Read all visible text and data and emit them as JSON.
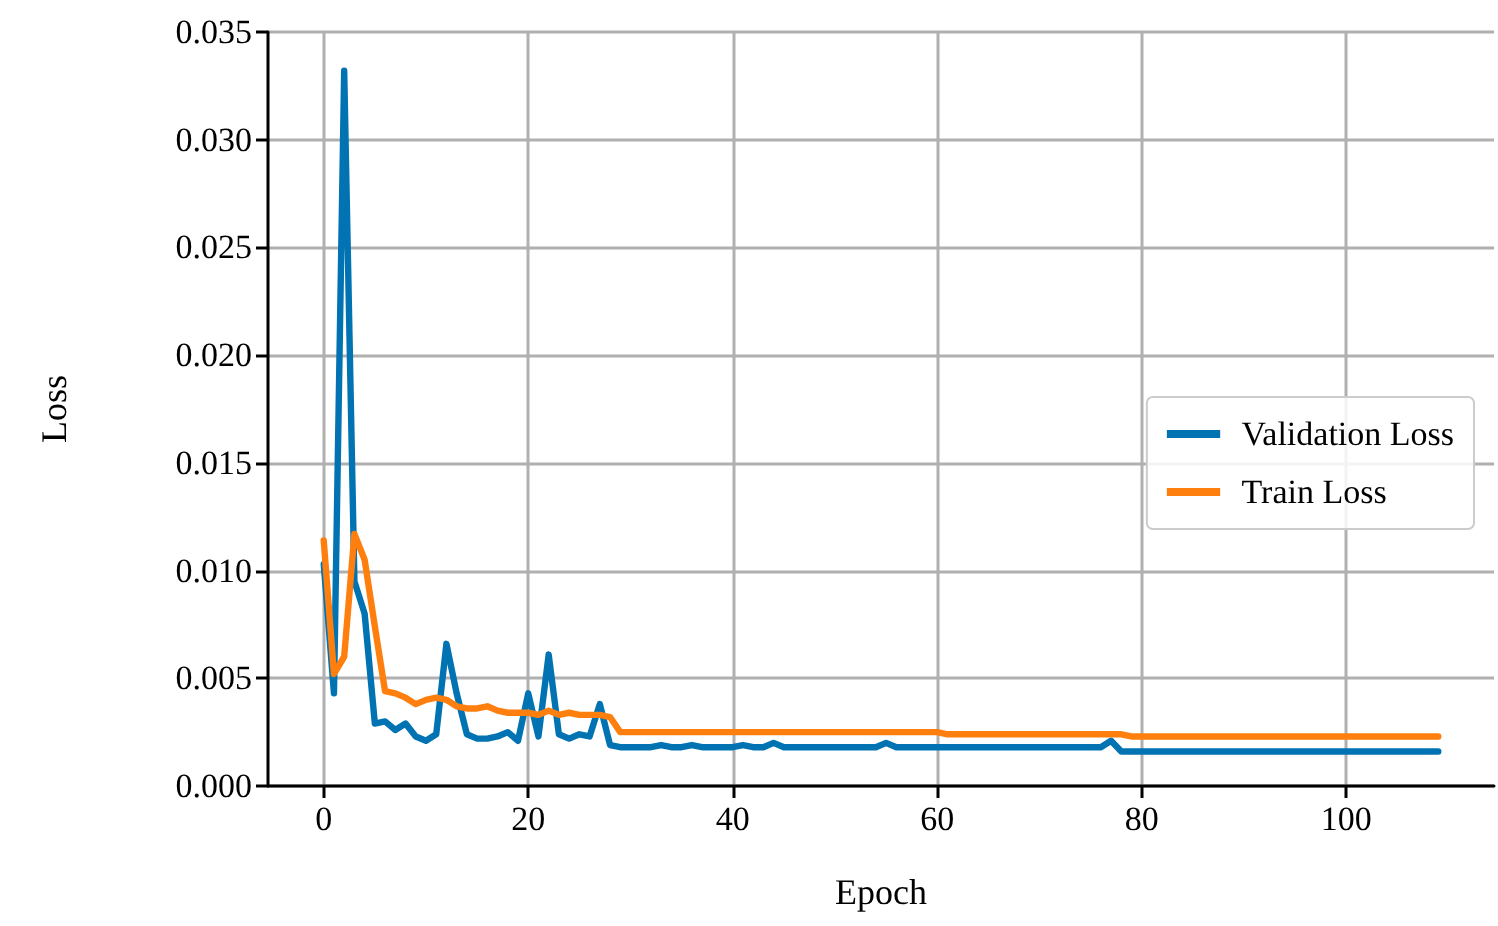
{
  "chart_data": {
    "type": "line",
    "xlabel": "Epoch",
    "ylabel": "Loss",
    "x": [
      0,
      1,
      2,
      3,
      4,
      5,
      6,
      7,
      8,
      9,
      10,
      11,
      12,
      13,
      14,
      15,
      16,
      17,
      18,
      19,
      20,
      21,
      22,
      23,
      24,
      25,
      26,
      27,
      28,
      29,
      30,
      31,
      32,
      33,
      34,
      35,
      36,
      37,
      38,
      39,
      40,
      41,
      42,
      43,
      44,
      45,
      46,
      47,
      48,
      49,
      50,
      51,
      52,
      53,
      54,
      55,
      56,
      57,
      58,
      59,
      60,
      61,
      62,
      63,
      64,
      65,
      66,
      67,
      68,
      69,
      70,
      71,
      72,
      73,
      74,
      75,
      76,
      77,
      78,
      79,
      80,
      81,
      82,
      83,
      84,
      85,
      86,
      87,
      88,
      89,
      90,
      91,
      92,
      93,
      94,
      95,
      96,
      97,
      98,
      99,
      100,
      101,
      102,
      103,
      104,
      105,
      106,
      107,
      108,
      109
    ],
    "series": [
      {
        "name": "Validation Loss",
        "color": "#0173b2",
        "values": [
          0.0103,
          0.0043,
          0.0332,
          0.0095,
          0.008,
          0.0029,
          0.003,
          0.0026,
          0.0029,
          0.0023,
          0.0021,
          0.0024,
          0.0066,
          0.0043,
          0.0024,
          0.0022,
          0.0022,
          0.0023,
          0.0025,
          0.0021,
          0.0043,
          0.0023,
          0.0061,
          0.0024,
          0.0022,
          0.0024,
          0.0023,
          0.0038,
          0.0019,
          0.0018,
          0.0018,
          0.0018,
          0.0018,
          0.0019,
          0.0018,
          0.0018,
          0.0019,
          0.0018,
          0.0018,
          0.0018,
          0.0018,
          0.0019,
          0.0018,
          0.0018,
          0.002,
          0.0018,
          0.0018,
          0.0018,
          0.0018,
          0.0018,
          0.0018,
          0.0018,
          0.0018,
          0.0018,
          0.0018,
          0.002,
          0.0018,
          0.0018,
          0.0018,
          0.0018,
          0.0018,
          0.0018,
          0.0018,
          0.0018,
          0.0018,
          0.0018,
          0.0018,
          0.0018,
          0.0018,
          0.0018,
          0.0018,
          0.0018,
          0.0018,
          0.0018,
          0.0018,
          0.0018,
          0.0018,
          0.0021,
          0.0016,
          0.0016,
          0.0016,
          0.0016,
          0.0016,
          0.0016,
          0.0016,
          0.0016,
          0.0016,
          0.0016,
          0.0016,
          0.0016,
          0.0016,
          0.0016,
          0.0016,
          0.0016,
          0.0016,
          0.0016,
          0.0016,
          0.0016,
          0.0016,
          0.0016,
          0.0016,
          0.0016,
          0.0016,
          0.0016,
          0.0016,
          0.0016,
          0.0016,
          0.0016,
          0.0016,
          0.0016
        ]
      },
      {
        "name": "Train Loss",
        "color": "#ff7f0e",
        "values": [
          0.0114,
          0.0052,
          0.006,
          0.0117,
          0.0105,
          0.0074,
          0.0044,
          0.0043,
          0.0041,
          0.0038,
          0.004,
          0.0041,
          0.004,
          0.0037,
          0.0036,
          0.0036,
          0.0037,
          0.0035,
          0.0034,
          0.0034,
          0.0034,
          0.0033,
          0.0035,
          0.0033,
          0.0034,
          0.0033,
          0.0033,
          0.0033,
          0.0032,
          0.0025,
          0.0025,
          0.0025,
          0.0025,
          0.0025,
          0.0025,
          0.0025,
          0.0025,
          0.0025,
          0.0025,
          0.0025,
          0.0025,
          0.0025,
          0.0025,
          0.0025,
          0.0025,
          0.0025,
          0.0025,
          0.0025,
          0.0025,
          0.0025,
          0.0025,
          0.0025,
          0.0025,
          0.0025,
          0.0025,
          0.0025,
          0.0025,
          0.0025,
          0.0025,
          0.0025,
          0.0025,
          0.0024,
          0.0024,
          0.0024,
          0.0024,
          0.0024,
          0.0024,
          0.0024,
          0.0024,
          0.0024,
          0.0024,
          0.0024,
          0.0024,
          0.0024,
          0.0024,
          0.0024,
          0.0024,
          0.0024,
          0.0024,
          0.0023,
          0.0023,
          0.0023,
          0.0023,
          0.0023,
          0.0023,
          0.0023,
          0.0023,
          0.0023,
          0.0023,
          0.0023,
          0.0023,
          0.0023,
          0.0023,
          0.0023,
          0.0023,
          0.0023,
          0.0023,
          0.0023,
          0.0023,
          0.0023,
          0.0023,
          0.0023,
          0.0023,
          0.0023,
          0.0023,
          0.0023,
          0.0023,
          0.0023,
          0.0023,
          0.0023
        ]
      }
    ],
    "xlim": [
      -5.45,
      114.45
    ],
    "xticks": [
      0,
      20,
      40,
      60,
      80,
      100
    ],
    "ylim": [
      0,
      0.035
    ],
    "yticks": [
      {
        "value": 0,
        "label": "0.000"
      },
      {
        "value": 0.005,
        "label": "0.005"
      },
      {
        "value": 0.01,
        "label": "0.010"
      },
      {
        "value": 0.015,
        "label": "0.015"
      },
      {
        "value": 0.02,
        "label": "0.020"
      },
      {
        "value": 0.025,
        "label": "0.025"
      },
      {
        "value": 0.03,
        "label": "0.030"
      },
      {
        "value": 0.035,
        "label": "0.035"
      }
    ],
    "grid": true,
    "legend": "right",
    "marker": "none",
    "line_style": "solid"
  }
}
